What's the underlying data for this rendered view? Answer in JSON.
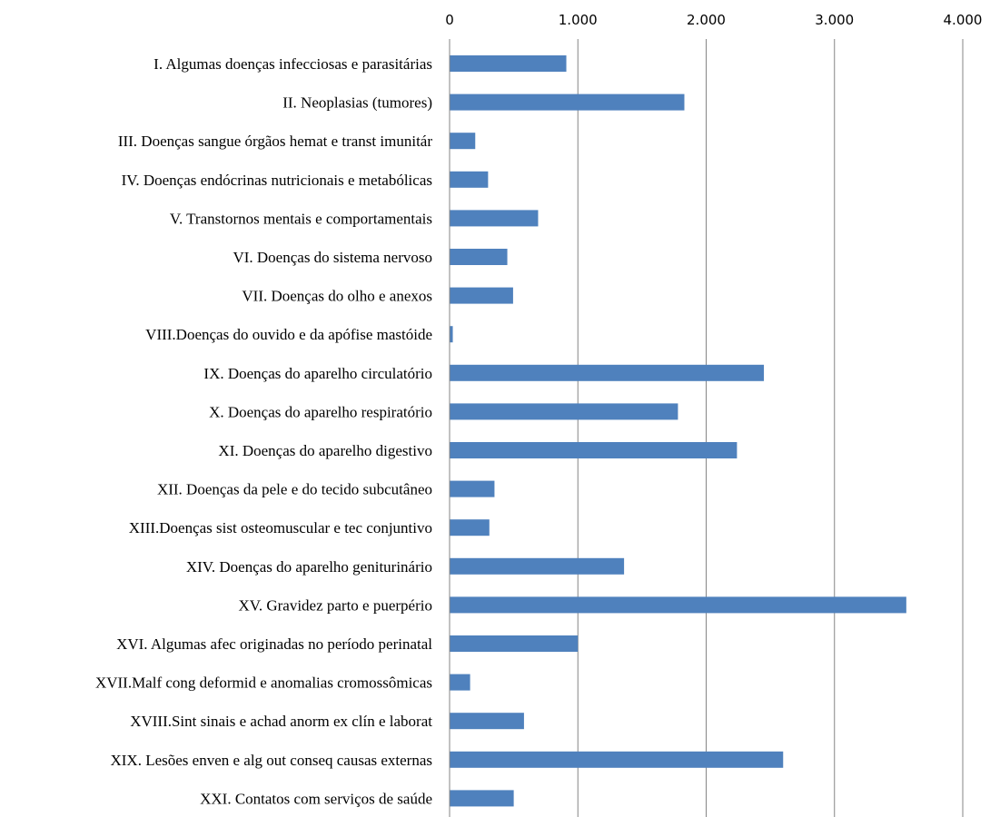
{
  "chart_data": {
    "type": "bar",
    "orientation": "horizontal",
    "categories": [
      "I. Algumas doenças infecciosas e parasitárias",
      "II. Neoplasias (tumores)",
      "III. Doenças sangue órgãos hemat e transt imunitár",
      "IV. Doenças endócrinas nutricionais e metabólicas",
      "V. Transtornos mentais e comportamentais",
      "VI. Doenças do sistema nervoso",
      "VII. Doenças do olho e anexos",
      "VIII.Doenças do ouvido e da apófise mastóide",
      "IX. Doenças do aparelho circulatório",
      "X. Doenças do aparelho respiratório",
      "XI. Doenças do aparelho digestivo",
      "XII. Doenças da pele e do tecido subcutâneo",
      "XIII.Doenças sist osteomuscular e tec conjuntivo",
      "XIV. Doenças do aparelho geniturinário",
      "XV. Gravidez parto e puerpério",
      "XVI. Algumas afec originadas no período perinatal",
      "XVII.Malf cong deformid e anomalias cromossômicas",
      "XVIII.Sint sinais e achad anorm ex clín e laborat",
      "XIX. Lesões enven e alg out conseq causas externas",
      "XXI. Contatos com serviços de saúde"
    ],
    "values": [
      910,
      1830,
      200,
      300,
      690,
      450,
      495,
      25,
      2450,
      1780,
      2240,
      350,
      310,
      1360,
      3560,
      1000,
      160,
      580,
      2600,
      500
    ],
    "xlim": [
      0,
      4000
    ],
    "ticks": [
      0,
      1000,
      2000,
      3000,
      4000
    ],
    "tick_labels": [
      "0",
      "1.000",
      "2.000",
      "3.000",
      "4.000"
    ],
    "axis_position": "top",
    "grid": true,
    "bar_color": "#4F81BD",
    "title": "",
    "xlabel": "",
    "ylabel": ""
  }
}
